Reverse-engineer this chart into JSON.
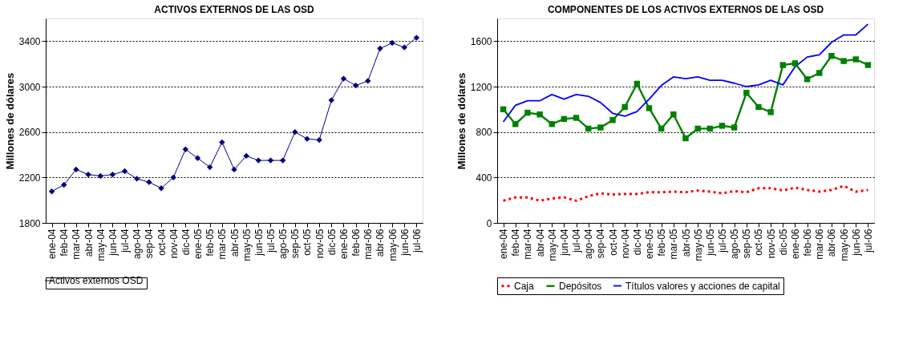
{
  "chart_data": [
    {
      "type": "line",
      "title": "ACTIVOS EXTERNOS DE LAS OSD",
      "ylabel": "Millones de dólares",
      "categories": [
        "ene-04",
        "feb-04",
        "mar-04",
        "abr-04",
        "may-04",
        "jun-04",
        "jul-04",
        "ago-04",
        "sep-04",
        "oct-04",
        "nov-04",
        "dic-04",
        "ene-05",
        "feb-05",
        "mar-05",
        "abr-05",
        "may-05",
        "jun-05",
        "jul-05",
        "ago-05",
        "sep-05",
        "oct-05",
        "nov-05",
        "dic-05",
        "ene-06",
        "feb-06",
        "mar-06",
        "abr-06",
        "may-06",
        "jun-06",
        "jul-06"
      ],
      "series": [
        {
          "name": "Activos externos OSD",
          "color": "#000080",
          "marker": "diamond",
          "line_style": "solid",
          "values": [
            2077,
            2135,
            2270,
            2226,
            2213,
            2226,
            2255,
            2189,
            2159,
            2105,
            2200,
            2448,
            2370,
            2290,
            2510,
            2270,
            2390,
            2350,
            2350,
            2350,
            2600,
            2540,
            2530,
            2880,
            3070,
            3010,
            3050,
            3335,
            3385,
            3345,
            3430
          ]
        }
      ],
      "ylim": [
        1800,
        3600
      ],
      "yticks": [
        1800,
        2200,
        2600,
        3000,
        3400
      ],
      "grid": "y",
      "legend": "bottom"
    },
    {
      "type": "line",
      "title": "COMPONENTES DE LOS ACTIVOS EXTERNOS DE LAS OSD",
      "ylabel": "Millones de dólares",
      "categories": [
        "ene-04",
        "feb-04",
        "mar-04",
        "abr-04",
        "may-04",
        "jun-04",
        "jul-04",
        "ago-04",
        "sep-04",
        "oct-04",
        "nov-04",
        "dic-04",
        "ene-05",
        "feb-05",
        "mar-05",
        "abr-05",
        "may-05",
        "jun-05",
        "jul-05",
        "ago-05",
        "sep-05",
        "oct-05",
        "nov-05",
        "dic-05",
        "ene-06",
        "feb-06",
        "mar-06",
        "abr-06",
        "may-06",
        "jun-06",
        "jul-06"
      ],
      "series": [
        {
          "name": "Caja",
          "color": "#ff0000",
          "marker": "none",
          "line_style": "dotted",
          "values": [
            195,
            225,
            225,
            195,
            215,
            225,
            195,
            235,
            260,
            250,
            255,
            255,
            270,
            270,
            275,
            270,
            285,
            275,
            260,
            280,
            270,
            305,
            305,
            285,
            310,
            290,
            275,
            290,
            325,
            275,
            290
          ]
        },
        {
          "name": "Depósitos",
          "color": "#008000",
          "marker": "square",
          "line_style": "solid",
          "values": [
            1000,
            870,
            970,
            955,
            870,
            915,
            925,
            830,
            840,
            905,
            1020,
            1225,
            1010,
            830,
            955,
            745,
            830,
            830,
            855,
            840,
            1145,
            1020,
            975,
            1390,
            1405,
            1265,
            1320,
            1470,
            1425,
            1440,
            1390
          ]
        },
        {
          "name": "Títulos valores y acciones de capital",
          "color": "#0000ff",
          "marker": "none",
          "line_style": "solid",
          "values": [
            890,
            1035,
            1075,
            1075,
            1130,
            1090,
            1130,
            1115,
            1060,
            965,
            940,
            980,
            1090,
            1210,
            1285,
            1270,
            1285,
            1255,
            1255,
            1230,
            1200,
            1215,
            1255,
            1215,
            1375,
            1460,
            1480,
            1590,
            1655,
            1655,
            1750
          ]
        }
      ],
      "ylim": [
        0,
        1800
      ],
      "yticks": [
        0,
        400,
        800,
        1200,
        1600
      ],
      "grid": "y",
      "legend": "bottom"
    }
  ]
}
